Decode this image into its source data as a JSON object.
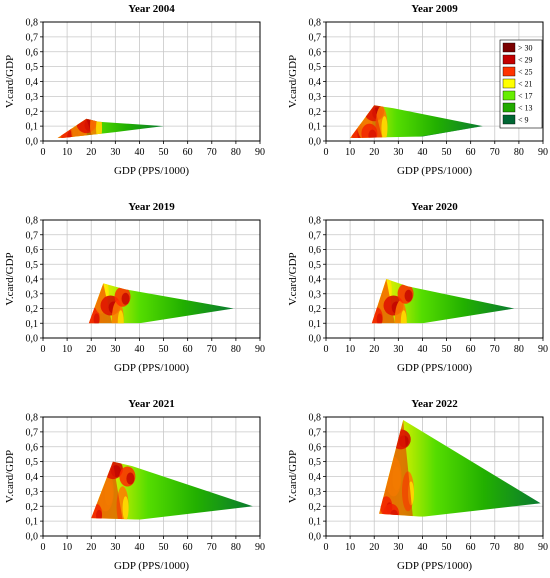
{
  "chart_data": [
    {
      "type": "contour",
      "title": "Year 2004",
      "xlabel": "GDP (PPS/1000)",
      "ylabel": "V.card/GDP",
      "xlim": [
        0,
        90
      ],
      "ylim": [
        0,
        0.8
      ],
      "xticks": [
        "0",
        "10",
        "20",
        "30",
        "40",
        "50",
        "60",
        "70",
        "80",
        "90"
      ],
      "yticks": [
        "0,0",
        "0,1",
        "0,2",
        "0,3",
        "0,4",
        "0,5",
        "0,6",
        "0,7",
        "0,8"
      ],
      "grid": true,
      "hull": [
        [
          6,
          0.02
        ],
        [
          18,
          0.15
        ],
        [
          23,
          0.13
        ],
        [
          50,
          0.1
        ],
        [
          30,
          0.06
        ],
        [
          8,
          0.02
        ]
      ],
      "hot_spots": [
        [
          10,
          0.04
        ],
        [
          15,
          0.08
        ],
        [
          18,
          0.12
        ],
        [
          22,
          0.1
        ]
      ]
    },
    {
      "type": "contour",
      "title": "Year 2009",
      "xlabel": "GDP (PPS/1000)",
      "ylabel": "V.card/GDP",
      "xlim": [
        0,
        90
      ],
      "ylim": [
        0,
        0.8
      ],
      "xticks": [
        "0",
        "10",
        "20",
        "30",
        "40",
        "50",
        "60",
        "70",
        "80",
        "90"
      ],
      "yticks": [
        "0,0",
        "0,1",
        "0,2",
        "0,3",
        "0,4",
        "0,5",
        "0,6",
        "0,7",
        "0,8"
      ],
      "grid": true,
      "hull": [
        [
          10,
          0.02
        ],
        [
          20,
          0.24
        ],
        [
          28,
          0.22
        ],
        [
          65,
          0.1
        ],
        [
          40,
          0.03
        ],
        [
          12,
          0.02
        ]
      ],
      "hot_spots": [
        [
          13,
          0.06
        ],
        [
          16,
          0.14
        ],
        [
          20,
          0.2
        ],
        [
          23,
          0.1
        ],
        [
          18,
          0.05
        ]
      ],
      "legend": {
        "position": "top-right",
        "entries": [
          {
            "label": "> 30",
            "color": "#7a0000"
          },
          {
            "label": "< 29",
            "color": "#c40000"
          },
          {
            "label": "< 25",
            "color": "#ff3300"
          },
          {
            "label": "< 21",
            "color": "#ffff00"
          },
          {
            "label": "< 17",
            "color": "#66ee00"
          },
          {
            "label": "< 13",
            "color": "#22aa00"
          },
          {
            "label": "< 9",
            "color": "#006633"
          }
        ]
      }
    },
    {
      "type": "contour",
      "title": "Year 2019",
      "xlabel": "GDP (PPS/1000)",
      "ylabel": "V.card/GDP",
      "xlim": [
        0,
        90
      ],
      "ylim": [
        0,
        0.8
      ],
      "xticks": [
        "0",
        "10",
        "20",
        "30",
        "40",
        "50",
        "60",
        "70",
        "80",
        "90"
      ],
      "yticks": [
        "0,0",
        "0,1",
        "0,2",
        "0,3",
        "0,4",
        "0,5",
        "0,6",
        "0,7",
        "0,8"
      ],
      "grid": true,
      "hull": [
        [
          19,
          0.1
        ],
        [
          25,
          0.37
        ],
        [
          34,
          0.33
        ],
        [
          79,
          0.2
        ],
        [
          40,
          0.1
        ]
      ],
      "hot_spots": [
        [
          21,
          0.14
        ],
        [
          24,
          0.3
        ],
        [
          28,
          0.22
        ],
        [
          31,
          0.12
        ],
        [
          33,
          0.28
        ]
      ]
    },
    {
      "type": "contour",
      "title": "Year 2020",
      "xlabel": "GDP (PPS/1000)",
      "ylabel": "V.card/GDP",
      "xlim": [
        0,
        90
      ],
      "ylim": [
        0,
        0.8
      ],
      "xticks": [
        "0",
        "10",
        "20",
        "30",
        "40",
        "50",
        "60",
        "70",
        "80",
        "90"
      ],
      "yticks": [
        "0,0",
        "0,1",
        "0,2",
        "0,3",
        "0,4",
        "0,5",
        "0,6",
        "0,7",
        "0,8"
      ],
      "grid": true,
      "hull": [
        [
          19,
          0.1
        ],
        [
          25,
          0.4
        ],
        [
          34,
          0.35
        ],
        [
          78,
          0.2
        ],
        [
          40,
          0.1
        ]
      ],
      "hot_spots": [
        [
          21,
          0.14
        ],
        [
          24,
          0.32
        ],
        [
          28,
          0.22
        ],
        [
          31,
          0.12
        ],
        [
          33,
          0.3
        ]
      ]
    },
    {
      "type": "contour",
      "title": "Year 2021",
      "xlabel": "GDP (PPS/1000)",
      "ylabel": "V.card/GDP",
      "xlim": [
        0,
        90
      ],
      "ylim": [
        0,
        0.8
      ],
      "xticks": [
        "0",
        "10",
        "20",
        "30",
        "40",
        "50",
        "60",
        "70",
        "80",
        "90"
      ],
      "yticks": [
        "0,0",
        "0,1",
        "0,2",
        "0,3",
        "0,4",
        "0,5",
        "0,6",
        "0,7",
        "0,8"
      ],
      "grid": true,
      "hull": [
        [
          20,
          0.12
        ],
        [
          29,
          0.5
        ],
        [
          37,
          0.47
        ],
        [
          87,
          0.2
        ],
        [
          40,
          0.11
        ]
      ],
      "hot_spots": [
        [
          22,
          0.15
        ],
        [
          26,
          0.3
        ],
        [
          29,
          0.45
        ],
        [
          33,
          0.2
        ],
        [
          35,
          0.4
        ]
      ]
    },
    {
      "type": "contour",
      "title": "Year 2022",
      "xlabel": "GDP (PPS/1000)",
      "ylabel": "V.card/GDP",
      "xlim": [
        0,
        90
      ],
      "ylim": [
        0,
        0.8
      ],
      "xticks": [
        "0",
        "10",
        "20",
        "30",
        "40",
        "50",
        "60",
        "70",
        "80",
        "90"
      ],
      "yticks": [
        "0,0",
        "0,1",
        "0,2",
        "0,3",
        "0,4",
        "0,5",
        "0,6",
        "0,7",
        "0,8"
      ],
      "grid": true,
      "hull": [
        [
          22,
          0.15
        ],
        [
          32,
          0.78
        ],
        [
          89,
          0.22
        ],
        [
          40,
          0.13
        ]
      ],
      "hot_spots": [
        [
          25,
          0.2
        ],
        [
          28,
          0.4
        ],
        [
          31,
          0.65
        ],
        [
          34,
          0.3
        ],
        [
          27,
          0.15
        ]
      ]
    }
  ]
}
